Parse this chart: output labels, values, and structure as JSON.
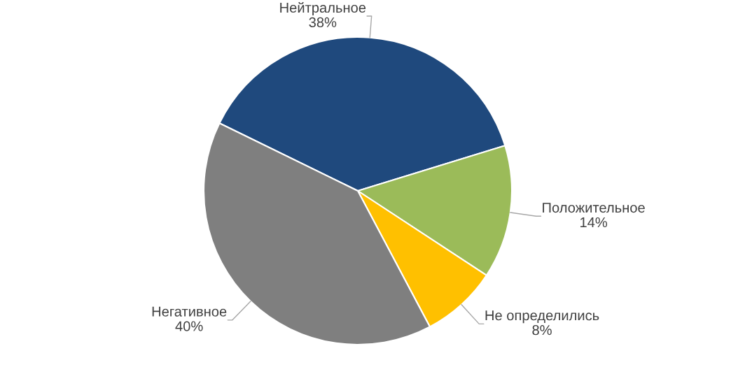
{
  "chart_data": {
    "type": "pie",
    "categories": [
      "Нейтральное",
      "Положительное",
      "Не определились",
      "Негативное"
    ],
    "values": [
      38,
      14,
      8,
      40
    ],
    "colors": [
      "#1f497d",
      "#9bbb59",
      "#ffc000",
      "#7f7f7f"
    ],
    "value_labels": [
      "38%",
      "14%",
      "8%",
      "40%"
    ]
  }
}
